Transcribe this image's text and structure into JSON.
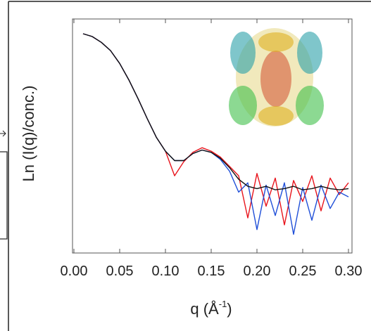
{
  "chart_data": {
    "type": "line",
    "x_label": {
      "text": "q (Å",
      "sup": "-1",
      "end": ")"
    },
    "y_label": "Ln (I(q)/conc.)",
    "x": [
      0.01,
      0.02,
      0.03,
      0.04,
      0.05,
      0.06,
      0.07,
      0.08,
      0.09,
      0.1,
      0.11,
      0.12,
      0.13,
      0.14,
      0.15,
      0.16,
      0.17,
      0.18,
      0.19,
      0.2,
      0.21,
      0.22,
      0.23,
      0.24,
      0.25,
      0.26,
      0.27,
      0.28,
      0.29,
      0.3
    ],
    "series": [
      {
        "color": "#e8141c",
        "values": [
          9.37,
          9.25,
          9.0,
          8.65,
          8.1,
          7.4,
          6.6,
          5.75,
          4.95,
          4.35,
          3.3,
          3.9,
          4.3,
          4.5,
          4.35,
          4.1,
          3.7,
          3.3,
          1.5,
          3.4,
          2.0,
          3.2,
          1.2,
          3.1,
          2.2,
          3.3,
          1.8,
          3.2,
          2.5,
          3.0
        ]
      },
      {
        "color": "#1f4fd8",
        "values": [
          9.37,
          9.25,
          9.0,
          8.65,
          8.1,
          7.4,
          6.6,
          5.75,
          4.95,
          4.35,
          3.95,
          3.95,
          4.25,
          4.4,
          4.3,
          4.0,
          3.5,
          2.6,
          3.0,
          1.0,
          2.9,
          1.6,
          3.0,
          0.8,
          2.8,
          1.4,
          2.9,
          1.9,
          2.6,
          2.4
        ]
      },
      {
        "color": "#111111",
        "values": [
          9.37,
          9.25,
          9.0,
          8.65,
          8.1,
          7.4,
          6.6,
          5.75,
          4.95,
          4.35,
          3.95,
          3.95,
          4.25,
          4.4,
          4.3,
          4.05,
          3.65,
          3.15,
          2.85,
          2.75,
          2.85,
          2.7,
          2.75,
          2.85,
          2.7,
          2.75,
          2.85,
          2.75,
          2.7,
          2.75
        ]
      }
    ],
    "xlim": [
      0,
      0.3
    ],
    "xticks": [
      {
        "value": 0,
        "label": "0.00"
      },
      0.05,
      {
        "value": 0.1,
        "label": "0.10"
      },
      0.15,
      {
        "value": 0.2,
        "label": "0.20"
      },
      0.25,
      {
        "value": 0.3,
        "label": "0.30"
      }
    ],
    "ylim": [
      0,
      10
    ]
  }
}
